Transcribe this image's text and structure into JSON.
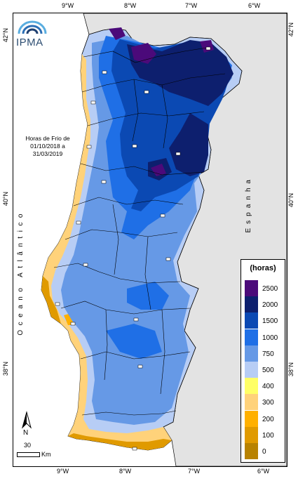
{
  "lon_ticks_top": [
    "9°W",
    "8°W",
    "7°W",
    "6°W"
  ],
  "lon_ticks_bottom": [
    "9°W",
    "8°W",
    "7°W",
    "6°W"
  ],
  "lat_ticks_left": [
    "42°N",
    "40°N",
    "38°N"
  ],
  "lat_ticks_right": [
    "42°N",
    "40°N",
    "38°N"
  ],
  "logo": {
    "text": "IPMA"
  },
  "title": "Horas de Frio de 01/10/2018 a 31/03/2019",
  "labels": {
    "ocean": "Oceano Atlântico",
    "spain": "Espanha"
  },
  "legend": {
    "title": "(horas)",
    "items": [
      {
        "label": "2500",
        "color": "#4b0a7a"
      },
      {
        "label": "2000",
        "color": "#0d1f6e"
      },
      {
        "label": "1500",
        "color": "#0b49b3"
      },
      {
        "label": "1000",
        "color": "#1f6fe6"
      },
      {
        "label": "750",
        "color": "#6699e6"
      },
      {
        "label": "500",
        "color": "#b7cdf5"
      },
      {
        "label": "400",
        "color": "#ffff66"
      },
      {
        "label": "300",
        "color": "#ffd27a"
      },
      {
        "label": "200",
        "color": "#ffb000"
      },
      {
        "label": "100",
        "color": "#e09a00"
      },
      {
        "label": "0",
        "color": "#b88200"
      }
    ]
  },
  "scale": {
    "value": "30",
    "unit": "Km"
  },
  "north": "N",
  "colors": {
    "land_outside": "#e3e3e3",
    "sea": "#ffffff",
    "border": "#000000"
  }
}
